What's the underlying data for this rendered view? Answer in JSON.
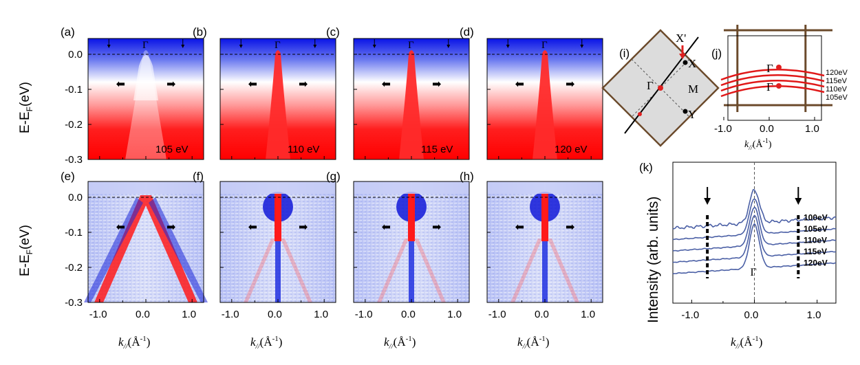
{
  "panels_top": [
    {
      "letter": "(a)",
      "energy_label": "105 eV"
    },
    {
      "letter": "(b)",
      "energy_label": "110 eV"
    },
    {
      "letter": "(c)",
      "energy_label": "115 eV"
    },
    {
      "letter": "(d)",
      "energy_label": "120 eV"
    }
  ],
  "panels_bottom": [
    {
      "letter": "(e)"
    },
    {
      "letter": "(f)"
    },
    {
      "letter": "(g)"
    },
    {
      "letter": "(h)"
    }
  ],
  "gamma_symbol": "Γ",
  "ylabel_top": "E-E",
  "ylabel_sub": "F",
  "ylabel_unit": "(eV)",
  "xlabel_main": "k",
  "xlabel_sub": "//",
  "xlabel_unit": "(Å",
  "xlabel_exp": "-1",
  "xlabel_close": ")",
  "y_ticks": [
    "0.0",
    "-0.1",
    "-0.2",
    "-0.3"
  ],
  "y_tick_values": [
    0.0,
    -0.1,
    -0.2,
    -0.3
  ],
  "x_ticks": [
    "-1.0",
    "0.0",
    "1.0"
  ],
  "x_tick_values": [
    -1.0,
    0.0,
    1.0
  ],
  "panel_i": {
    "letter": "(i)",
    "labels": {
      "gamma": "Γ",
      "x_prime": "X'",
      "x": "X",
      "m": "M",
      "y": "Y"
    },
    "colors": {
      "border": "#6b4a2b",
      "fill": "#dcdcdc",
      "point": "#e02020"
    }
  },
  "panel_j": {
    "letter": "(j)",
    "gamma_top": "Γ",
    "gamma_bottom": "Γ",
    "cuts": [
      "120eV",
      "115eV",
      "110eV",
      "105eV"
    ],
    "x_ticks": [
      "-1.0",
      "0.0",
      "1.0"
    ],
    "x_tick_values": [
      -1.0,
      0.0,
      1.0
    ]
  },
  "chart_data": {
    "type": "line",
    "panel": "(k)",
    "ylabel": "Intensity (arb. units)",
    "xlabel": "k// (Å-1)",
    "xlim": [
      -1.3,
      1.3
    ],
    "x_ticks": [
      "-1.0",
      "0.0",
      "1.0"
    ],
    "x_tick_values": [
      -1.0,
      0.0,
      1.0
    ],
    "gamma_label": "Γ",
    "series": [
      {
        "name": "100eV",
        "offset": 4
      },
      {
        "name": "105eV",
        "offset": 3
      },
      {
        "name": "110eV",
        "offset": 2
      },
      {
        "name": "115eV",
        "offset": 1
      },
      {
        "name": "120eV",
        "offset": 0
      }
    ],
    "arrow_positions": [
      -0.75,
      0.7
    ],
    "line_color": "#4a5fa5"
  },
  "colors": {
    "band_red": "#ff0000",
    "band_blue": "#0000ff"
  }
}
